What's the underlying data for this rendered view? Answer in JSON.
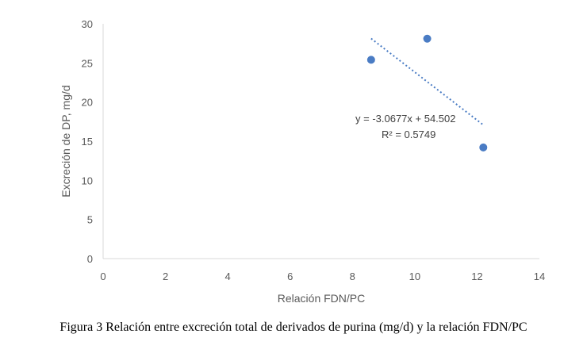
{
  "caption": "Figura 3   Relación entre excreción total de derivados de purina (mg/d) y la relación FDN/PC",
  "chart_data": {
    "type": "scatter",
    "title": "",
    "xlabel": "Relación FDN/PC",
    "ylabel": "Excreción de DP, mg/d",
    "xlim": [
      0,
      14
    ],
    "ylim": [
      0,
      30
    ],
    "xticks": [
      0,
      2,
      4,
      6,
      8,
      10,
      12,
      14
    ],
    "yticks": [
      0,
      5,
      10,
      15,
      20,
      25,
      30
    ],
    "grid": false,
    "series": [
      {
        "points": [
          {
            "x": 8.6,
            "y": 25.4
          },
          {
            "x": 10.4,
            "y": 28.1
          },
          {
            "x": 12.2,
            "y": 14.2
          }
        ],
        "color": "#4a7cc4"
      }
    ],
    "trendline": {
      "type": "linear",
      "slope": -3.0677,
      "intercept": 54.502,
      "x_range": [
        8.6,
        12.2
      ],
      "equation": "y = -3.0677x + 54.502",
      "r2": "R² = 0.5749"
    }
  }
}
